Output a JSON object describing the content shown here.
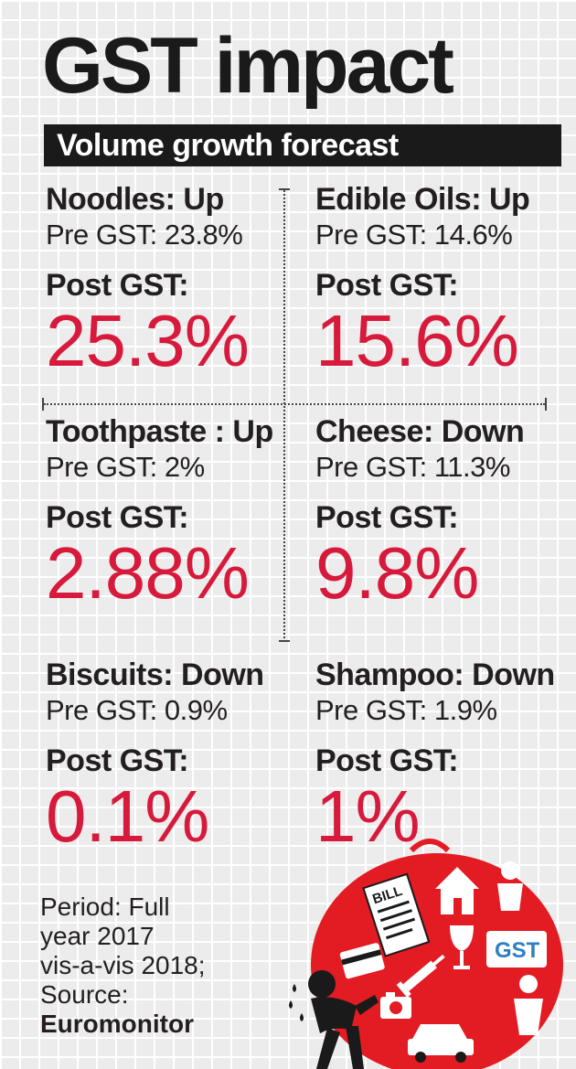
{
  "title": "GST impact",
  "subtitle": "Volume growth forecast",
  "post_label": "Post GST:",
  "items": [
    {
      "head": "Noodles: Up",
      "pre": "Pre GST: 23.8%",
      "post": "25.3%"
    },
    {
      "head": "Edible Oils: Up",
      "pre": "Pre GST: 14.6%",
      "post": "15.6%"
    },
    {
      "head": "Toothpaste : Up",
      "pre": "Pre GST: 2%",
      "post": "2.88%"
    },
    {
      "head": "Cheese: Down",
      "pre": "Pre GST: 11.3%",
      "post": "9.8%"
    },
    {
      "head": "Biscuits: Down",
      "pre": "Pre GST: 0.9%",
      "post": "0.1%"
    },
    {
      "head": "Shampoo: Down",
      "pre": "Pre GST: 1.9%",
      "post": "1%"
    }
  ],
  "footnote": {
    "line1": "Period: Full",
    "line2": "year 2017",
    "line3": "vis-a-vis 2018;",
    "line4": "Source:",
    "source": "Euromonitor"
  },
  "illustration": {
    "bill_text": "BILL",
    "gst_text": "GST",
    "colors": {
      "red": "#e31b23",
      "dark": "#1a1a1a",
      "blue": "#2e7fc1"
    }
  }
}
